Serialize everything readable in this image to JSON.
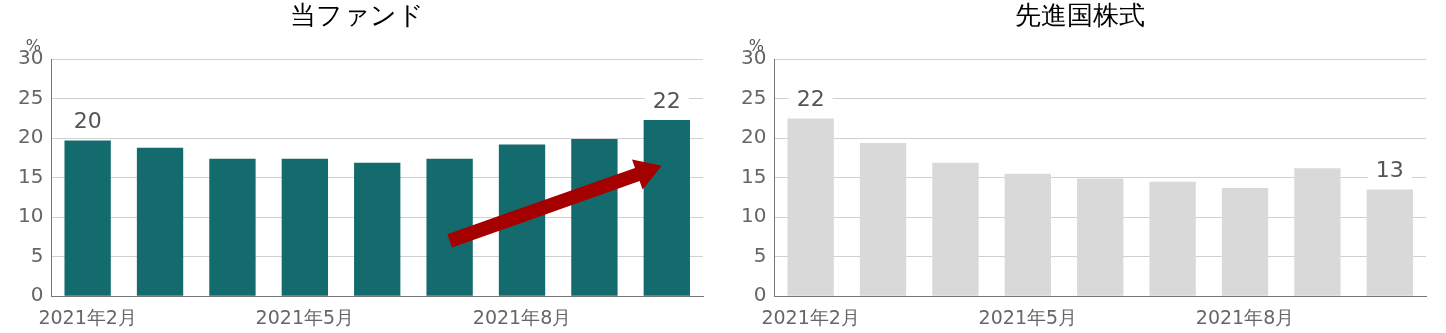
{
  "chart_data": [
    {
      "type": "bar",
      "title": "当ファンド",
      "ylabel": "%",
      "categories": [
        "2021年2月",
        null,
        null,
        "2021年5月",
        null,
        null,
        "2021年8月",
        null,
        null
      ],
      "values": [
        19.7,
        18.8,
        17.4,
        17.4,
        16.9,
        17.4,
        19.2,
        19.9,
        22.3
      ],
      "color": "#136b6e",
      "value_labels": [
        "20",
        null,
        null,
        null,
        null,
        null,
        null,
        null,
        "22"
      ],
      "ylim": [
        0,
        30
      ],
      "yticks": [
        0,
        5,
        10,
        15,
        20,
        25,
        30
      ],
      "grid": "y",
      "legend": false
    },
    {
      "type": "bar",
      "title": "先進国株式",
      "ylabel": "%",
      "categories": [
        "2021年2月",
        null,
        null,
        "2021年5月",
        null,
        null,
        "2021年8月",
        null,
        null
      ],
      "values": [
        22.5,
        19.4,
        16.9,
        15.5,
        14.9,
        14.5,
        13.7,
        16.2,
        13.5
      ],
      "color": "#d9d9d9",
      "value_labels": [
        "22",
        null,
        null,
        null,
        null,
        null,
        null,
        null,
        "13"
      ],
      "ylim": [
        0,
        30
      ],
      "yticks": [
        0,
        5,
        10,
        15,
        20,
        25,
        30
      ],
      "grid": "y",
      "legend": false
    }
  ]
}
